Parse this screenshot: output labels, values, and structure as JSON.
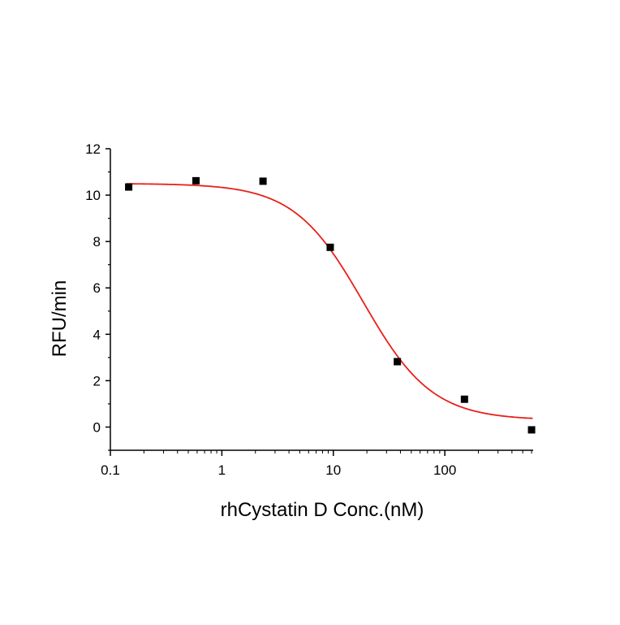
{
  "chart_data": {
    "type": "scatter",
    "title": "",
    "xlabel": "rhCystatin D Conc.(nM)",
    "ylabel": "RFU/min",
    "x_scale": "log",
    "xlim": [
      0.1,
      620
    ],
    "ylim": [
      -1,
      12
    ],
    "x_ticks": [
      0.1,
      1,
      10,
      100
    ],
    "x_tick_labels": [
      "0.1",
      "1",
      "10",
      "100"
    ],
    "y_ticks": [
      0,
      2,
      4,
      6,
      8,
      10,
      12
    ],
    "y_tick_labels": [
      "0",
      "2",
      "4",
      "6",
      "8",
      "10",
      "12"
    ],
    "grid": false,
    "legend": "none",
    "series": [
      {
        "type": "scatter",
        "marker": "square",
        "color": "#000000",
        "x": [
          0.146,
          0.586,
          2.34,
          9.38,
          37.5,
          150,
          600
        ],
        "y": [
          10.35,
          10.62,
          10.6,
          7.75,
          2.82,
          1.2,
          -0.12
        ]
      },
      {
        "type": "line",
        "fit": "4-parameter logistic",
        "color": "#e8201a",
        "bottom": 0.3,
        "top": 10.5,
        "ec50": 18.5,
        "hill": 1.4
      }
    ]
  }
}
